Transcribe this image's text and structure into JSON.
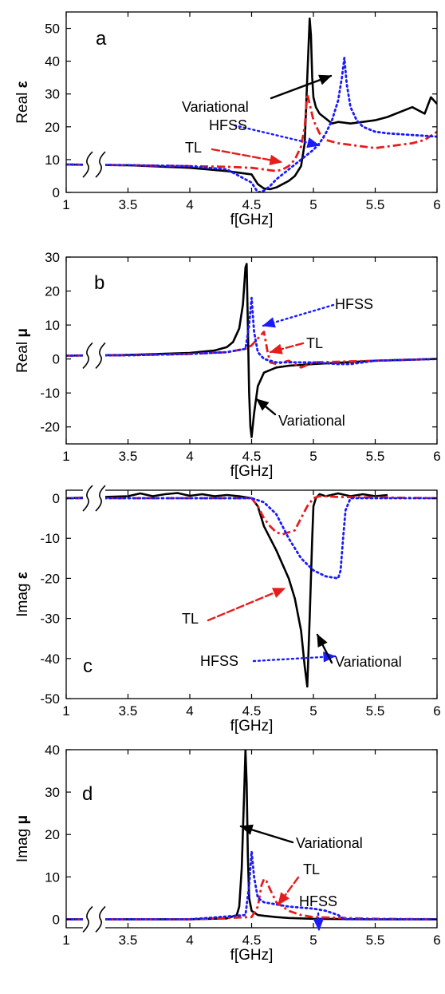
{
  "chart_data": [
    {
      "type": "line",
      "panel_letter": "a",
      "ylabel": "Real ε",
      "xlabel": "f[GHz]",
      "xticks": [
        "1",
        "3.5",
        "4",
        "4.5",
        "5",
        "5.5",
        "6"
      ],
      "yticks": [
        "0",
        "10",
        "20",
        "30",
        "40",
        "50"
      ],
      "xlim": [
        3.0,
        6.0
      ],
      "ylim": [
        0,
        55
      ],
      "axis_break": true,
      "series": [
        {
          "name": "Variational",
          "color": "#000000",
          "dash": "solid",
          "x": [
            3.0,
            3.5,
            4.0,
            4.3,
            4.5,
            4.55,
            4.6,
            4.65,
            4.7,
            4.75,
            4.8,
            4.85,
            4.9,
            4.93,
            4.95,
            4.97,
            4.98,
            4.99,
            5.0,
            5.02,
            5.05,
            5.1,
            5.15,
            5.2,
            5.3,
            5.4,
            5.5,
            5.6,
            5.7,
            5.8,
            5.9,
            5.95,
            6.0
          ],
          "y": [
            8.5,
            8.3,
            7.5,
            6.5,
            5.5,
            2.5,
            1.2,
            1.0,
            1.5,
            2.5,
            3.5,
            5.0,
            8.0,
            15.0,
            35.0,
            53.0,
            48.0,
            35.0,
            29.0,
            26.0,
            24.0,
            22.5,
            21.0,
            21.5,
            21.0,
            21.5,
            22.0,
            23.0,
            24.5,
            26.0,
            24.0,
            29.0,
            27.0
          ]
        },
        {
          "name": "TL",
          "color": "#e51d1d",
          "dash": "dashdot",
          "x": [
            3.0,
            3.5,
            4.0,
            4.3,
            4.5,
            4.6,
            4.7,
            4.75,
            4.8,
            4.85,
            4.9,
            4.93,
            4.95,
            4.97,
            5.0,
            5.05,
            5.1,
            5.2,
            5.3,
            5.4,
            5.5,
            5.6,
            5.7,
            5.8,
            5.9,
            6.0
          ],
          "y": [
            8.5,
            8.3,
            8.0,
            7.8,
            7.5,
            7.0,
            6.5,
            7.0,
            8.0,
            10.0,
            14.0,
            20.0,
            30.0,
            27.0,
            22.0,
            18.0,
            16.0,
            15.0,
            14.5,
            14.0,
            13.5,
            14.0,
            14.5,
            15.0,
            16.0,
            18.5
          ]
        },
        {
          "name": "HFSS",
          "color": "#1a1aff",
          "dash": "dot",
          "x": [
            3.0,
            3.5,
            4.0,
            4.3,
            4.5,
            4.55,
            4.6,
            4.65,
            4.7,
            4.8,
            4.9,
            5.0,
            5.05,
            5.1,
            5.15,
            5.2,
            5.23,
            5.25,
            5.27,
            5.3,
            5.35,
            5.4,
            5.5,
            5.6,
            5.8,
            6.0
          ],
          "y": [
            8.5,
            8.3,
            8.0,
            7.0,
            3.0,
            0.0,
            0.5,
            2.0,
            4.0,
            7.0,
            10.0,
            13.0,
            15.0,
            18.0,
            22.0,
            28.0,
            35.0,
            41.0,
            33.0,
            26.0,
            22.0,
            20.0,
            18.5,
            18.0,
            17.5,
            17.0
          ]
        }
      ],
      "annotations": [
        {
          "text": "Variational"
        },
        {
          "text": "HFSS"
        },
        {
          "text": "TL"
        }
      ]
    },
    {
      "type": "line",
      "panel_letter": "b",
      "ylabel": "Real μ",
      "xlabel": "f[GHz]",
      "xticks": [
        "1",
        "3.5",
        "4",
        "4.5",
        "5",
        "5.5",
        "6"
      ],
      "yticks": [
        "-20",
        "-10",
        "0",
        "10",
        "20",
        "30"
      ],
      "xlim": [
        3.0,
        6.0
      ],
      "ylim": [
        -25,
        30
      ],
      "axis_break": true,
      "series": [
        {
          "name": "Variational",
          "color": "#000000",
          "dash": "solid",
          "x": [
            3.0,
            3.5,
            4.0,
            4.2,
            4.3,
            4.35,
            4.4,
            4.43,
            4.45,
            4.46,
            4.47,
            4.48,
            4.49,
            4.5,
            4.52,
            4.55,
            4.6,
            4.7,
            4.8,
            5.0,
            5.5,
            6.0
          ],
          "y": [
            1.0,
            1.2,
            1.8,
            2.5,
            3.5,
            5.0,
            9.0,
            16.0,
            27.0,
            28.0,
            10.0,
            -10.0,
            -20.0,
            -23.0,
            -16.0,
            -8.0,
            -4.0,
            -2.5,
            -2.0,
            -1.5,
            -0.5,
            0.0
          ]
        },
        {
          "name": "TL",
          "color": "#e51d1d",
          "dash": "dashdot",
          "x": [
            3.0,
            3.5,
            4.0,
            4.3,
            4.45,
            4.5,
            4.55,
            4.6,
            4.63,
            4.65,
            4.7,
            4.75,
            4.8,
            4.9,
            5.0,
            5.5,
            6.0
          ],
          "y": [
            1.0,
            1.1,
            1.5,
            2.0,
            3.0,
            4.0,
            6.0,
            8.0,
            2.0,
            -1.0,
            -1.5,
            -1.0,
            -0.5,
            -2.5,
            -1.0,
            -0.5,
            0.0
          ]
        },
        {
          "name": "HFSS",
          "color": "#1a1aff",
          "dash": "dot",
          "x": [
            3.0,
            3.5,
            4.0,
            4.3,
            4.45,
            4.48,
            4.5,
            4.52,
            4.55,
            4.6,
            4.7,
            4.8,
            5.0,
            5.2,
            5.3,
            5.5,
            6.0
          ],
          "y": [
            1.0,
            1.1,
            1.5,
            2.0,
            3.0,
            10.0,
            18.0,
            8.0,
            2.0,
            0.0,
            -1.0,
            -1.0,
            -1.0,
            -1.5,
            -1.5,
            -0.5,
            0.0
          ]
        }
      ],
      "annotations": [
        {
          "text": "HFSS"
        },
        {
          "text": "TL"
        },
        {
          "text": "Variational"
        }
      ]
    },
    {
      "type": "line",
      "panel_letter": "c",
      "ylabel": "Imag ε",
      "xlabel": "f[GHz]",
      "xticks": [
        "1",
        "3.5",
        "4",
        "4.5",
        "5",
        "5.5",
        "6"
      ],
      "yticks": [
        "-50",
        "-40",
        "-30",
        "-20",
        "-10",
        "0"
      ],
      "xlim": [
        3.0,
        6.0
      ],
      "ylim": [
        -50,
        2
      ],
      "axis_break": true,
      "series": [
        {
          "name": "Variational",
          "color": "#000000",
          "dash": "solid",
          "x": [
            3.0,
            3.5,
            3.6,
            3.7,
            3.8,
            3.9,
            4.0,
            4.1,
            4.2,
            4.3,
            4.4,
            4.5,
            4.55,
            4.6,
            4.7,
            4.8,
            4.85,
            4.9,
            4.93,
            4.95,
            4.97,
            4.99,
            5.0,
            5.02,
            5.05,
            5.1,
            5.2,
            5.3,
            5.4,
            5.5,
            5.6
          ],
          "y": [
            0.0,
            0.5,
            1.2,
            0.5,
            1.0,
            1.3,
            0.6,
            1.0,
            0.5,
            0.8,
            0.5,
            0.0,
            -2.0,
            -7.0,
            -13.0,
            -20.0,
            -25.0,
            -33.0,
            -42.0,
            -47.0,
            -30.0,
            -10.0,
            -2.0,
            0.0,
            1.0,
            0.5,
            1.2,
            0.5,
            1.0,
            0.5,
            0.8
          ]
        },
        {
          "name": "TL",
          "color": "#e51d1d",
          "dash": "dashdot",
          "x": [
            3.0,
            3.5,
            4.0,
            4.5,
            4.55,
            4.6,
            4.65,
            4.7,
            4.75,
            4.8,
            4.85,
            4.9,
            4.95,
            5.0,
            5.05,
            5.1,
            5.2,
            5.5,
            6.0
          ],
          "y": [
            0.0,
            0.0,
            0.0,
            0.0,
            -2.0,
            -5.0,
            -7.0,
            -8.5,
            -9.0,
            -8.5,
            -8.0,
            -5.0,
            -2.0,
            0.0,
            0.5,
            0.5,
            0.3,
            0.2,
            0.0
          ]
        },
        {
          "name": "HFSS",
          "color": "#1a1aff",
          "dash": "dot",
          "x": [
            3.0,
            3.5,
            4.0,
            4.5,
            4.6,
            4.7,
            4.8,
            4.9,
            5.0,
            5.1,
            5.2,
            5.22,
            5.24,
            5.26,
            5.3,
            5.4,
            5.6,
            6.0
          ],
          "y": [
            0.0,
            0.0,
            0.0,
            0.0,
            -1.0,
            -4.0,
            -10.0,
            -15.0,
            -18.0,
            -19.5,
            -20.0,
            -18.0,
            -10.0,
            -3.0,
            0.0,
            0.0,
            0.0,
            0.0
          ]
        }
      ],
      "annotations": [
        {
          "text": "TL"
        },
        {
          "text": "HFSS"
        },
        {
          "text": "Variational"
        }
      ]
    },
    {
      "type": "line",
      "panel_letter": "d",
      "ylabel": "Imag μ",
      "xlabel": "f[GHz]",
      "xticks": [
        "1",
        "3.5",
        "4",
        "4.5",
        "5",
        "5.5",
        "6"
      ],
      "yticks": [
        "0",
        "10",
        "20",
        "30",
        "40"
      ],
      "xlim": [
        3.0,
        6.0
      ],
      "ylim": [
        -2,
        40
      ],
      "axis_break": true,
      "series": [
        {
          "name": "Variational",
          "color": "#000000",
          "dash": "solid",
          "x": [
            3.0,
            3.5,
            4.0,
            4.3,
            4.38,
            4.4,
            4.42,
            4.44,
            4.45,
            4.46,
            4.47,
            4.48,
            4.5,
            4.55,
            4.6,
            4.7,
            4.8,
            5.0,
            5.5,
            6.0
          ],
          "y": [
            0.0,
            0.0,
            0.0,
            0.2,
            1.0,
            3.0,
            12.0,
            30.0,
            40.0,
            32.0,
            15.0,
            5.0,
            2.0,
            1.0,
            0.8,
            0.5,
            0.3,
            0.1,
            0.0,
            0.0
          ]
        },
        {
          "name": "TL",
          "color": "#e51d1d",
          "dash": "dashdot",
          "x": [
            3.0,
            3.5,
            4.0,
            4.5,
            4.55,
            4.58,
            4.6,
            4.62,
            4.65,
            4.7,
            4.8,
            4.9,
            5.0,
            5.5,
            6.0
          ],
          "y": [
            0.0,
            0.0,
            0.0,
            0.5,
            3.0,
            8.0,
            9.5,
            9.0,
            7.0,
            4.0,
            2.0,
            1.0,
            0.5,
            0.1,
            0.0
          ]
        },
        {
          "name": "HFSS",
          "color": "#1a1aff",
          "dash": "dot",
          "x": [
            3.0,
            3.5,
            4.0,
            4.45,
            4.48,
            4.5,
            4.52,
            4.55,
            4.6,
            4.7,
            4.8,
            5.0,
            5.1,
            5.2,
            5.25,
            5.5,
            6.0
          ],
          "y": [
            0.0,
            0.0,
            0.0,
            1.0,
            8.0,
            16.0,
            10.0,
            5.0,
            4.0,
            3.5,
            3.0,
            2.5,
            2.0,
            1.0,
            0.0,
            0.0,
            0.0
          ]
        }
      ],
      "annotations": [
        {
          "text": "Variational"
        },
        {
          "text": "TL"
        },
        {
          "text": "HFSS"
        }
      ]
    }
  ]
}
